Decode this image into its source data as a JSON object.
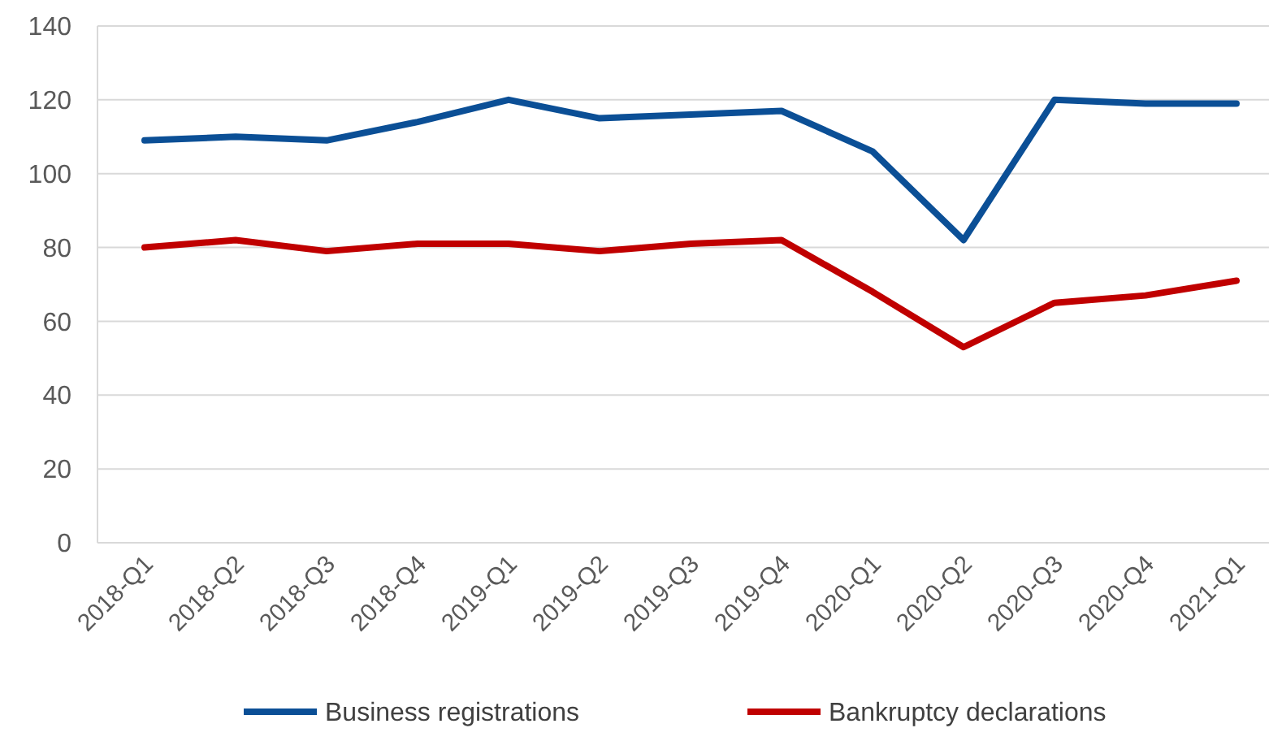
{
  "chart_data": {
    "type": "line",
    "categories": [
      "2018-Q1",
      "2018-Q2",
      "2018-Q3",
      "2018-Q4",
      "2019-Q1",
      "2019-Q2",
      "2019-Q3",
      "2019-Q4",
      "2020-Q1",
      "2020-Q2",
      "2020-Q3",
      "2020-Q4",
      "2021-Q1"
    ],
    "series": [
      {
        "name": "Business registrations",
        "color": "#0b4f96",
        "values": [
          109,
          110,
          109,
          114,
          120,
          115,
          116,
          117,
          106,
          82,
          120,
          119,
          119
        ]
      },
      {
        "name": "Bankruptcy declarations",
        "color": "#c00000",
        "values": [
          80,
          82,
          79,
          81,
          81,
          79,
          81,
          82,
          68,
          53,
          65,
          67,
          71
        ]
      }
    ],
    "ylim": [
      0,
      140
    ],
    "yticks": [
      0,
      20,
      40,
      60,
      80,
      100,
      120,
      140
    ],
    "grid": "y",
    "legend": "bottom",
    "line_style": "solid",
    "marker": "none"
  }
}
